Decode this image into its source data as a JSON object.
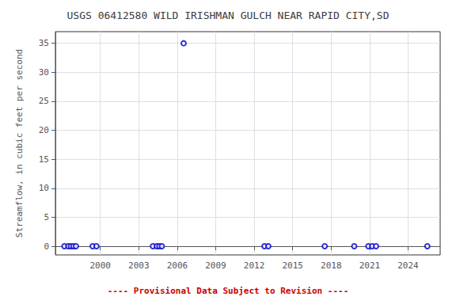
{
  "chart_data": {
    "type": "scatter",
    "title": "USGS 06412580 WILD IRISHMAN GULCH NEAR RAPID CITY,SD",
    "ylabel": "Streamflow, in cubic feet per second",
    "annotations": [
      {
        "text": "---- Provisional Data Subject to Revision ----",
        "color": "#cc0000"
      }
    ],
    "x": [
      1997.2,
      1997.5,
      1997.7,
      1997.9,
      1998.1,
      1999.4,
      1999.7,
      2004.1,
      2004.4,
      2004.6,
      2004.8,
      2006.5,
      2012.8,
      2013.1,
      2017.5,
      2019.8,
      2020.9,
      2021.2,
      2021.5,
      2025.5
    ],
    "values": [
      0,
      0,
      0,
      0,
      0,
      0,
      0,
      0,
      0,
      0,
      0,
      35,
      0,
      0,
      0,
      0,
      0,
      0,
      0,
      0
    ],
    "color": "#0000cc",
    "marker": "circle",
    "xlim": [
      1996.5,
      2026.5
    ],
    "ylim": [
      -1.5,
      37
    ],
    "xticks": [
      2000,
      2003,
      2006,
      2009,
      2012,
      2015,
      2018,
      2021,
      2024
    ],
    "yticks": [
      0,
      5,
      10,
      15,
      20,
      25,
      30,
      35
    ],
    "grid": true
  }
}
